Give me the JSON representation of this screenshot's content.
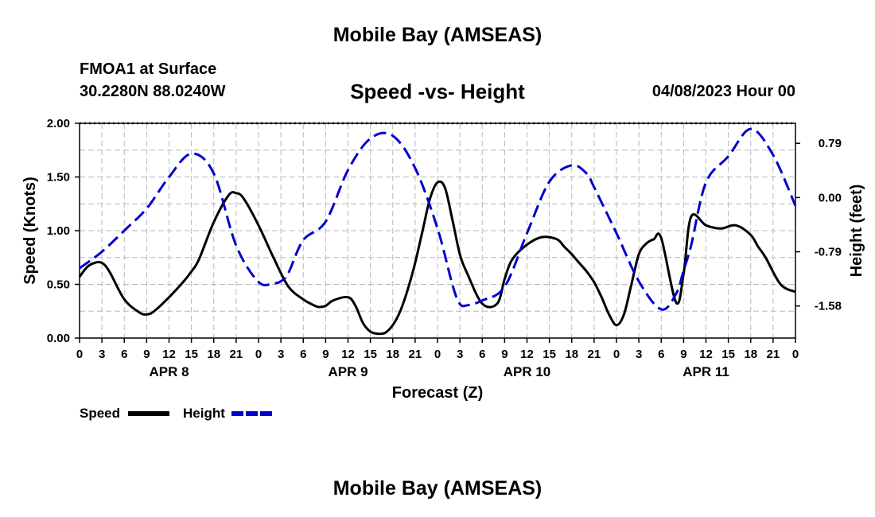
{
  "header": {
    "title": "Mobile Bay (AMSEAS)",
    "station": "FMOA1 at Surface",
    "coords": "30.2280N  88.0240W",
    "chart_title": "Speed -vs- Height",
    "run_time": "04/08/2023 Hour 00"
  },
  "footer_title": "Mobile Bay (AMSEAS)",
  "chart_data": {
    "type": "line",
    "title": "Speed -vs- Height",
    "xlabel": "Forecast (Z)",
    "ylabel": "Speed (Knots)",
    "y2label": "Height (feet)",
    "xlim": [
      0,
      96
    ],
    "ylim": [
      0,
      2
    ],
    "y2lim": [
      -2.047,
      1.082
    ],
    "x_tick_labels": [
      "0",
      "3",
      "6",
      "9",
      "12",
      "15",
      "18",
      "21",
      "0",
      "3",
      "6",
      "9",
      "12",
      "15",
      "18",
      "21",
      "0",
      "3",
      "6",
      "9",
      "12",
      "15",
      "18",
      "21",
      "0",
      "3",
      "6",
      "9",
      "12",
      "15",
      "18",
      "21",
      "0"
    ],
    "date_labels": [
      {
        "label": "APR 8",
        "x": 12
      },
      {
        "label": "APR 9",
        "x": 36
      },
      {
        "label": "APR 10",
        "x": 60
      },
      {
        "label": "APR 11",
        "x": 84
      }
    ],
    "y_ticks": [
      "0.00",
      "0.50",
      "1.00",
      "1.50",
      "2.00"
    ],
    "y2_ticks": [
      "0.79",
      "0.00",
      "-0.79",
      "-1.58"
    ],
    "grid": true,
    "legend_position": "bottom-left",
    "colors": {
      "speed": "#000000",
      "height": "#0000cc"
    },
    "series": [
      {
        "name": "Speed",
        "axis": "left",
        "style": "solid",
        "x": [
          0,
          1,
          2,
          3,
          4,
          6,
          8,
          9,
          10,
          12,
          14,
          15,
          16,
          18,
          20,
          21,
          22,
          24,
          26,
          28,
          30,
          31,
          32,
          33,
          34,
          36,
          37,
          38,
          39,
          40,
          41,
          42,
          43,
          44,
          45,
          46,
          47,
          48,
          49,
          50,
          51,
          52,
          54,
          56,
          57,
          58,
          60,
          62,
          64,
          65,
          66,
          67,
          68,
          69,
          70,
          71,
          72,
          73,
          74,
          75,
          76,
          77,
          78,
          80,
          81,
          82,
          84,
          86,
          88,
          90,
          91,
          92,
          94,
          96
        ],
        "y": [
          0.57,
          0.66,
          0.7,
          0.7,
          0.62,
          0.36,
          0.24,
          0.22,
          0.25,
          0.38,
          0.53,
          0.62,
          0.73,
          1.08,
          1.33,
          1.35,
          1.3,
          1.05,
          0.75,
          0.48,
          0.36,
          0.32,
          0.29,
          0.3,
          0.35,
          0.38,
          0.3,
          0.14,
          0.06,
          0.04,
          0.05,
          0.12,
          0.25,
          0.45,
          0.7,
          1.0,
          1.3,
          1.45,
          1.4,
          1.1,
          0.78,
          0.6,
          0.32,
          0.32,
          0.55,
          0.73,
          0.87,
          0.94,
          0.92,
          0.85,
          0.78,
          0.7,
          0.62,
          0.52,
          0.38,
          0.22,
          0.12,
          0.22,
          0.5,
          0.78,
          0.88,
          0.92,
          0.93,
          0.33,
          0.6,
          1.13,
          1.05,
          1.02,
          1.05,
          0.96,
          0.85,
          0.75,
          0.5,
          0.43
        ]
      },
      {
        "name": "Height",
        "axis": "right",
        "style": "dashed",
        "x": [
          0,
          3,
          6,
          9,
          12,
          15,
          18,
          21,
          24,
          26,
          27,
          28,
          30,
          33,
          36,
          39,
          42,
          45,
          48,
          50,
          51,
          52,
          54,
          57,
          60,
          63,
          66,
          68,
          69,
          72,
          75,
          78,
          80,
          81,
          82,
          84,
          87,
          90,
          93,
          96
        ],
        "y": [
          -1.03,
          -0.79,
          -0.48,
          -0.16,
          0.3,
          0.64,
          0.35,
          -0.7,
          -1.23,
          -1.25,
          -1.22,
          -1.1,
          -0.62,
          -0.35,
          0.4,
          0.86,
          0.9,
          0.43,
          -0.45,
          -1.27,
          -1.55,
          -1.57,
          -1.5,
          -1.3,
          -0.52,
          0.23,
          0.47,
          0.35,
          0.15,
          -0.52,
          -1.22,
          -1.63,
          -1.4,
          -1.06,
          -0.7,
          0.22,
          0.6,
          1.0,
          0.62,
          -0.12
        ]
      }
    ]
  },
  "legend": {
    "speed_label": "Speed",
    "height_label": "Height"
  }
}
